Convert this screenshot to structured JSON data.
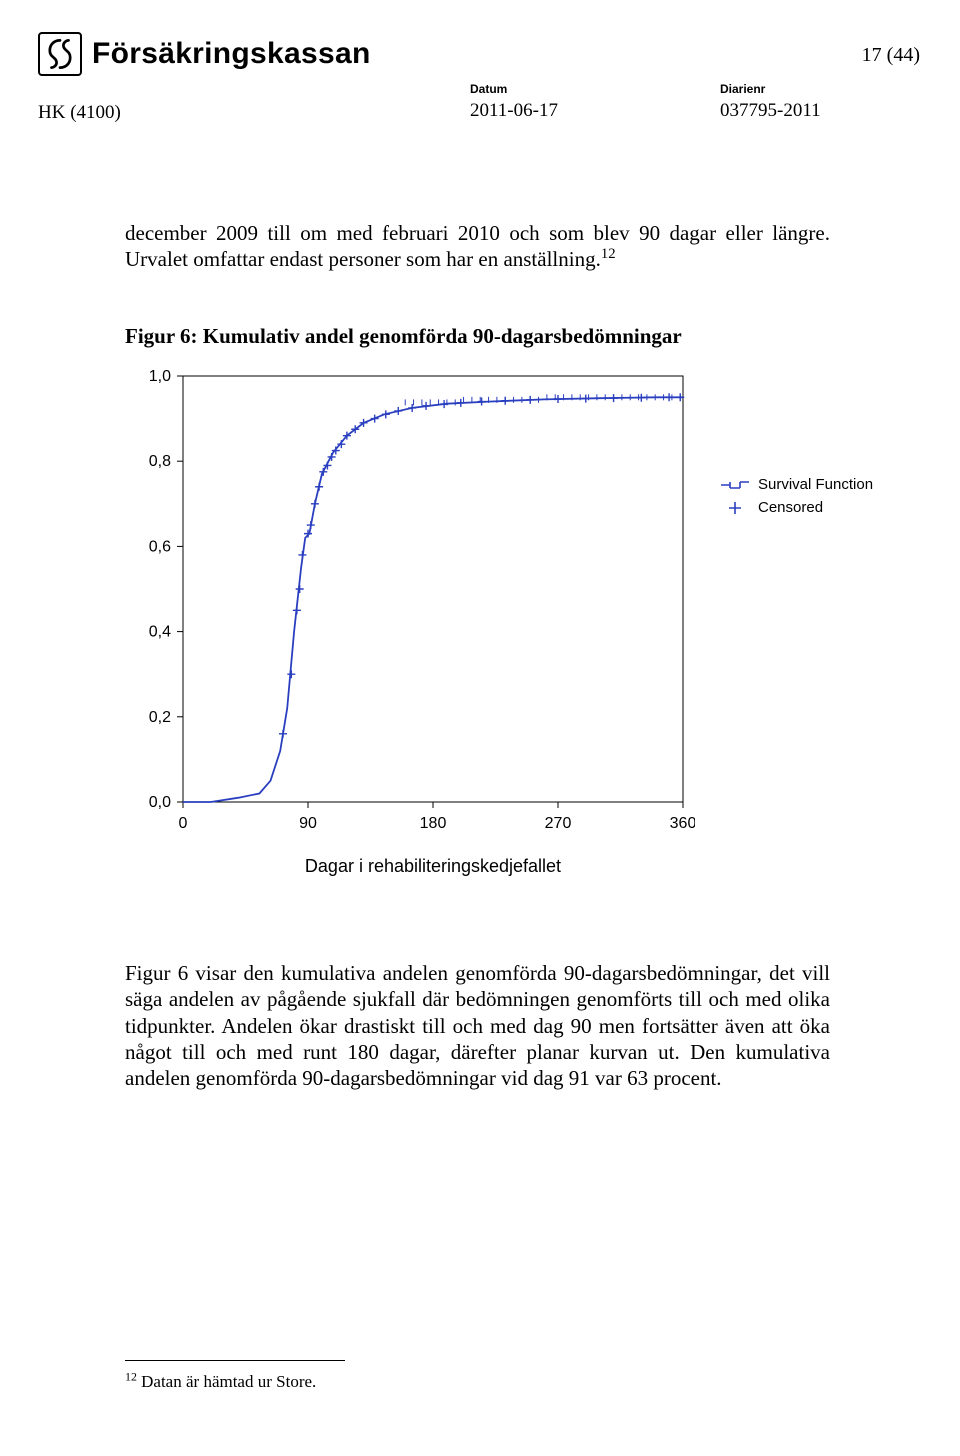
{
  "header": {
    "brand": "Försäkringskassan",
    "page_indicator": "17 (44)",
    "hk_code": "HK (4100)",
    "datum_label": "Datum",
    "datum_value": "2011-06-17",
    "diarienr_label": "Diarienr",
    "diarienr_value": "037795-2011"
  },
  "paragraph1_prefix": "december 2009 till om med februari 2010 och som blev 90 dagar eller längre. Urvalet omfattar endast personer som har en anställning.",
  "paragraph1_sup": "12",
  "figure_title": "Figur 6: Kumulativ andel genomförda 90-dagarsbedömningar",
  "chart": {
    "type": "survival-curve",
    "xlim": [
      0,
      360
    ],
    "xticks": [
      0,
      90,
      180,
      270,
      360
    ],
    "ylim": [
      0.0,
      1.0
    ],
    "yticks": [
      0.0,
      0.2,
      0.4,
      0.6,
      0.8,
      1.0
    ],
    "ytick_labels": [
      "0,0",
      "0,2",
      "0,4",
      "0,6",
      "0,8",
      "1,0"
    ],
    "x_axis_label": "Dagar i rehabiliteringskedjefallet",
    "legend": {
      "survival": "Survival Function",
      "censored": "Censored"
    },
    "curve_points": [
      [
        0,
        0.0
      ],
      [
        20,
        0.0
      ],
      [
        40,
        0.01
      ],
      [
        55,
        0.02
      ],
      [
        63,
        0.05
      ],
      [
        70,
        0.12
      ],
      [
        75,
        0.22
      ],
      [
        80,
        0.4
      ],
      [
        85,
        0.55
      ],
      [
        88,
        0.62
      ],
      [
        91,
        0.63
      ],
      [
        95,
        0.7
      ],
      [
        100,
        0.77
      ],
      [
        108,
        0.82
      ],
      [
        118,
        0.86
      ],
      [
        130,
        0.89
      ],
      [
        145,
        0.91
      ],
      [
        165,
        0.925
      ],
      [
        190,
        0.935
      ],
      [
        220,
        0.94
      ],
      [
        260,
        0.945
      ],
      [
        300,
        0.948
      ],
      [
        340,
        0.95
      ],
      [
        360,
        0.95
      ]
    ],
    "censored_points": [
      [
        72,
        0.16
      ],
      [
        78,
        0.3
      ],
      [
        82,
        0.45
      ],
      [
        84,
        0.5
      ],
      [
        86,
        0.58
      ],
      [
        90,
        0.63
      ],
      [
        92,
        0.65
      ],
      [
        95,
        0.7
      ],
      [
        98,
        0.74
      ],
      [
        101,
        0.775
      ],
      [
        104,
        0.79
      ],
      [
        107,
        0.81
      ],
      [
        110,
        0.825
      ],
      [
        114,
        0.84
      ],
      [
        118,
        0.86
      ],
      [
        124,
        0.875
      ],
      [
        130,
        0.89
      ],
      [
        138,
        0.9
      ],
      [
        146,
        0.91
      ],
      [
        155,
        0.918
      ],
      [
        165,
        0.925
      ],
      [
        175,
        0.93
      ],
      [
        188,
        0.934
      ],
      [
        200,
        0.937
      ],
      [
        215,
        0.94
      ],
      [
        232,
        0.942
      ],
      [
        250,
        0.944
      ],
      [
        270,
        0.946
      ],
      [
        290,
        0.947
      ],
      [
        310,
        0.948
      ],
      [
        330,
        0.949
      ],
      [
        350,
        0.95
      ],
      [
        358,
        0.95
      ]
    ],
    "colors": {
      "curve": "#2a3fbf",
      "censored": "#2a3fbf",
      "axis": "#000000",
      "background": "#ffffff"
    },
    "line_width": 1.8,
    "tick_fontsize": 16,
    "axis_label_fontsize": 18
  },
  "paragraph2": "Figur 6 visar den kumulativa andelen genomförda 90-dagarsbedömningar, det vill säga andelen av pågående sjukfall där bedömningen genomförts till och med olika tidpunkter. Andelen ökar drastiskt till och med dag 90 men fortsätter även att öka något till och med runt 180 dagar, därefter planar kurvan ut. Den kumulativa andelen genomförda 90-dagarsbedömningar vid dag 91 var 63 procent.",
  "footnote_sup": "12",
  "footnote_text": " Datan är hämtad ur  Store."
}
